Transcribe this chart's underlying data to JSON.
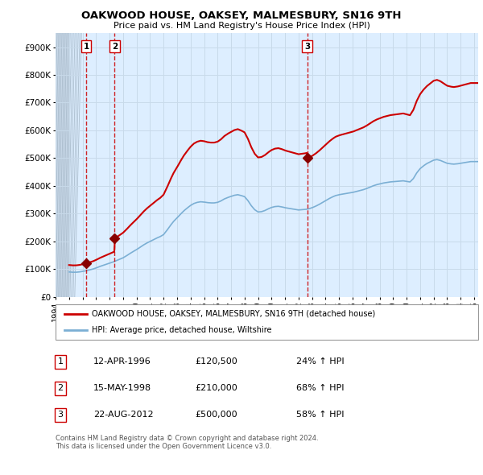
{
  "title": "OAKWOOD HOUSE, OAKSEY, MALMESBURY, SN16 9TH",
  "subtitle": "Price paid vs. HM Land Registry's House Price Index (HPI)",
  "xlim": [
    1994.0,
    2025.3
  ],
  "ylim": [
    0,
    950000
  ],
  "yticks": [
    0,
    100000,
    200000,
    300000,
    400000,
    500000,
    600000,
    700000,
    800000,
    900000
  ],
  "ytick_labels": [
    "£0",
    "£100K",
    "£200K",
    "£300K",
    "£400K",
    "£500K",
    "£600K",
    "£700K",
    "£800K",
    "£900K"
  ],
  "sales": [
    {
      "year": 1996.28,
      "price": 120500,
      "label": "1"
    },
    {
      "year": 1998.37,
      "price": 210000,
      "label": "2"
    },
    {
      "year": 2012.64,
      "price": 500000,
      "label": "3"
    }
  ],
  "hpi_line_color": "#7bafd4",
  "sale_line_color": "#cc0000",
  "sale_dot_color": "#880000",
  "vline_color": "#cc0000",
  "grid_color": "#c8daea",
  "plot_bg": "#ddeeff",
  "hatch_bg": "#c8d8e8",
  "legend_sale_label": "OAKWOOD HOUSE, OAKSEY, MALMESBURY, SN16 9TH (detached house)",
  "legend_hpi_label": "HPI: Average price, detached house, Wiltshire",
  "table_rows": [
    [
      "1",
      "12-APR-1996",
      "£120,500",
      "24% ↑ HPI"
    ],
    [
      "2",
      "15-MAY-1998",
      "£210,000",
      "68% ↑ HPI"
    ],
    [
      "3",
      "22-AUG-2012",
      "£500,000",
      "58% ↑ HPI"
    ]
  ],
  "footnote": "Contains HM Land Registry data © Crown copyright and database right 2024.\nThis data is licensed under the Open Government Licence v3.0.",
  "hpi_data_years": [
    1995.0,
    1995.25,
    1995.5,
    1995.75,
    1996.0,
    1996.25,
    1996.5,
    1996.75,
    1997.0,
    1997.25,
    1997.5,
    1997.75,
    1998.0,
    1998.25,
    1998.5,
    1998.75,
    1999.0,
    1999.25,
    1999.5,
    1999.75,
    2000.0,
    2000.25,
    2000.5,
    2000.75,
    2001.0,
    2001.25,
    2001.5,
    2001.75,
    2002.0,
    2002.25,
    2002.5,
    2002.75,
    2003.0,
    2003.25,
    2003.5,
    2003.75,
    2004.0,
    2004.25,
    2004.5,
    2004.75,
    2005.0,
    2005.25,
    2005.5,
    2005.75,
    2006.0,
    2006.25,
    2006.5,
    2006.75,
    2007.0,
    2007.25,
    2007.5,
    2007.75,
    2008.0,
    2008.25,
    2008.5,
    2008.75,
    2009.0,
    2009.25,
    2009.5,
    2009.75,
    2010.0,
    2010.25,
    2010.5,
    2010.75,
    2011.0,
    2011.25,
    2011.5,
    2011.75,
    2012.0,
    2012.25,
    2012.5,
    2012.75,
    2013.0,
    2013.25,
    2013.5,
    2013.75,
    2014.0,
    2014.25,
    2014.5,
    2014.75,
    2015.0,
    2015.25,
    2015.5,
    2015.75,
    2016.0,
    2016.25,
    2016.5,
    2016.75,
    2017.0,
    2017.25,
    2017.5,
    2017.75,
    2018.0,
    2018.25,
    2018.5,
    2018.75,
    2019.0,
    2019.25,
    2019.5,
    2019.75,
    2020.0,
    2020.25,
    2020.5,
    2020.75,
    2021.0,
    2021.25,
    2021.5,
    2021.75,
    2022.0,
    2022.25,
    2022.5,
    2022.75,
    2023.0,
    2023.25,
    2023.5,
    2023.75,
    2024.0,
    2024.25,
    2024.5,
    2024.75
  ],
  "hpi_index": [
    88,
    87,
    87,
    88,
    90,
    92,
    95,
    98,
    102,
    107,
    111,
    115,
    119,
    123,
    128,
    133,
    138,
    145,
    153,
    160,
    167,
    175,
    183,
    190,
    196,
    202,
    208,
    213,
    220,
    235,
    252,
    267,
    279,
    292,
    304,
    314,
    323,
    330,
    334,
    336,
    335,
    333,
    332,
    332,
    334,
    339,
    346,
    351,
    355,
    359,
    361,
    358,
    354,
    340,
    322,
    308,
    300,
    301,
    305,
    311,
    316,
    319,
    320,
    318,
    315,
    313,
    311,
    309,
    307,
    308,
    309,
    311,
    315,
    320,
    326,
    333,
    340,
    347,
    353,
    358,
    361,
    363,
    365,
    367,
    369,
    372,
    375,
    378,
    382,
    387,
    392,
    396,
    399,
    402,
    404,
    406,
    407,
    408,
    409,
    410,
    408,
    406,
    418,
    438,
    453,
    463,
    471,
    477,
    483,
    485,
    482,
    477,
    472,
    470,
    469,
    470,
    472,
    474,
    476,
    478
  ]
}
